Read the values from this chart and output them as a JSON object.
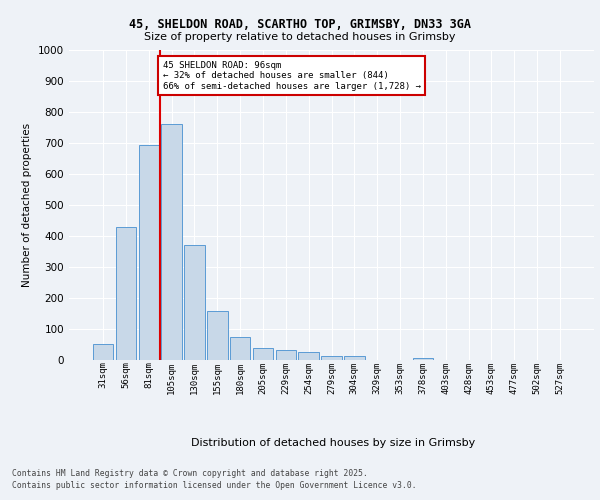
{
  "title_line1": "45, SHELDON ROAD, SCARTHO TOP, GRIMSBY, DN33 3GA",
  "title_line2": "Size of property relative to detached houses in Grimsby",
  "xlabel": "Distribution of detached houses by size in Grimsby",
  "ylabel": "Number of detached properties",
  "categories": [
    "31sqm",
    "56sqm",
    "81sqm",
    "105sqm",
    "130sqm",
    "155sqm",
    "180sqm",
    "205sqm",
    "229sqm",
    "254sqm",
    "279sqm",
    "304sqm",
    "329sqm",
    "353sqm",
    "378sqm",
    "403sqm",
    "428sqm",
    "453sqm",
    "477sqm",
    "502sqm",
    "527sqm"
  ],
  "values": [
    52,
    430,
    695,
    760,
    370,
    158,
    75,
    40,
    33,
    25,
    12,
    12,
    0,
    0,
    5,
    0,
    0,
    0,
    0,
    0,
    0
  ],
  "bar_color": "#c8d8e8",
  "bar_edgecolor": "#5b9bd5",
  "background_color": "#eef2f7",
  "plot_bg_color": "#eef2f7",
  "grid_color": "#ffffff",
  "annotation_text": "45 SHELDON ROAD: 96sqm\n← 32% of detached houses are smaller (844)\n66% of semi-detached houses are larger (1,728) →",
  "annotation_box_color": "#ffffff",
  "annotation_box_edgecolor": "#cc0000",
  "ylim": [
    0,
    1000
  ],
  "yticks": [
    0,
    100,
    200,
    300,
    400,
    500,
    600,
    700,
    800,
    900,
    1000
  ],
  "footer_line1": "Contains HM Land Registry data © Crown copyright and database right 2025.",
  "footer_line2": "Contains public sector information licensed under the Open Government Licence v3.0."
}
